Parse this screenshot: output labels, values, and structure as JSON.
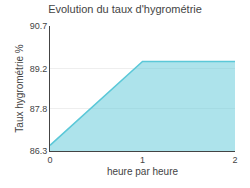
{
  "chart_data": {
    "type": "line",
    "title": "Evolution du taux d'hygrométrie",
    "xlabel": "heure par heure",
    "ylabel": "Taux hygrométrie %",
    "x": [
      0,
      1,
      2
    ],
    "values": [
      86.5,
      89.45,
      89.45
    ],
    "color": "#5bc8d8",
    "xlim": [
      0,
      2
    ],
    "ylim": [
      86.3,
      90.7
    ],
    "xticks": [
      0,
      1,
      2
    ],
    "yticks": [
      86.3,
      87.8,
      89.2,
      90.7
    ],
    "grid": true
  }
}
